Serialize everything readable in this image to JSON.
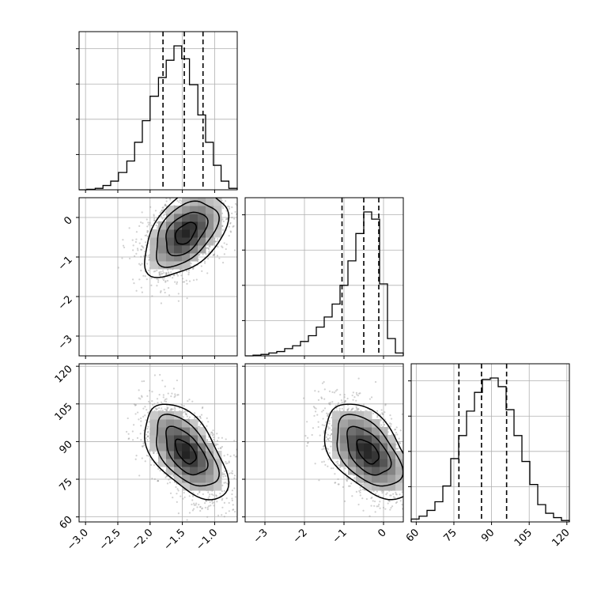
{
  "chart_data": {
    "type": "corner",
    "colors": {
      "line": "#000000",
      "grid": "#b0b0b0",
      "scatter": "#9a9a9a",
      "frame": "#000000"
    },
    "parameters": [
      {
        "id": "p0",
        "range": [
          -3.1,
          -0.65
        ],
        "ticks": [
          -3.0,
          -2.5,
          -2.0,
          -1.5,
          -1.0
        ],
        "tick_labels": [
          "−3.0",
          "−2.5",
          "−2.0",
          "−1.5",
          "−1.0"
        ],
        "quantiles": [
          -1.8,
          -1.47,
          -1.18
        ]
      },
      {
        "id": "p1",
        "range": [
          -3.5,
          0.5
        ],
        "ticks": [
          -3,
          -2,
          -1,
          0
        ],
        "tick_labels": [
          "−3",
          "−2",
          "−1",
          "0"
        ],
        "quantiles": [
          -1.05,
          -0.5,
          -0.12
        ]
      },
      {
        "id": "p2",
        "range": [
          58,
          121
        ],
        "ticks": [
          60,
          75,
          90,
          105,
          120
        ],
        "tick_labels": [
          "60",
          "75",
          "90",
          "105",
          "120"
        ],
        "quantiles": [
          77,
          86,
          96
        ]
      }
    ],
    "histograms": [
      {
        "param": "p0",
        "edges": [
          -3.1,
          -2.98,
          -2.85,
          -2.73,
          -2.61,
          -2.49,
          -2.36,
          -2.24,
          -2.12,
          -2.0,
          -1.87,
          -1.75,
          -1.63,
          -1.51,
          -1.39,
          -1.26,
          -1.14,
          -1.02,
          -0.9,
          -0.78,
          -0.65
        ],
        "counts": [
          0.0,
          0.003,
          0.01,
          0.03,
          0.06,
          0.12,
          0.2,
          0.33,
          0.48,
          0.65,
          0.78,
          0.9,
          1.0,
          0.91,
          0.73,
          0.52,
          0.33,
          0.17,
          0.06,
          0.01
        ]
      },
      {
        "param": "p1",
        "edges": [
          -3.5,
          -3.3,
          -3.1,
          -2.9,
          -2.7,
          -2.5,
          -2.3,
          -2.1,
          -1.9,
          -1.7,
          -1.5,
          -1.3,
          -1.1,
          -0.9,
          -0.7,
          -0.5,
          -0.3,
          -0.1,
          0.1,
          0.3,
          0.5
        ],
        "counts": [
          0.0,
          0.005,
          0.01,
          0.02,
          0.03,
          0.05,
          0.07,
          0.1,
          0.14,
          0.2,
          0.27,
          0.36,
          0.49,
          0.66,
          0.85,
          1.0,
          0.95,
          0.5,
          0.12,
          0.02
        ]
      },
      {
        "param": "p2",
        "edges": [
          58,
          61.15,
          64.3,
          67.45,
          70.6,
          73.75,
          76.9,
          80.05,
          83.2,
          86.35,
          89.5,
          92.65,
          95.8,
          98.95,
          102.1,
          105.25,
          108.4,
          111.55,
          114.7,
          117.85,
          121
        ],
        "counts": [
          0.02,
          0.04,
          0.08,
          0.14,
          0.25,
          0.44,
          0.6,
          0.77,
          0.9,
          0.99,
          1.0,
          0.94,
          0.78,
          0.6,
          0.42,
          0.26,
          0.12,
          0.06,
          0.03,
          0.01
        ]
      }
    ],
    "pairs": [
      {
        "x": "p0",
        "y": "p1",
        "mean": [
          -1.45,
          -0.4
        ],
        "sd": [
          0.32,
          0.55
        ],
        "rho": 0.45
      },
      {
        "x": "p0",
        "y": "p2",
        "mean": [
          -1.45,
          86.0
        ],
        "sd": [
          0.32,
          9.5
        ],
        "rho": -0.55
      },
      {
        "x": "p1",
        "y": "p2",
        "mean": [
          -0.4,
          86.0
        ],
        "sd": [
          0.55,
          9.5
        ],
        "rho": -0.5
      }
    ],
    "contour_levels_sigma": [
      0.5,
      1.0,
      1.5,
      2.0
    ],
    "grid": true
  }
}
